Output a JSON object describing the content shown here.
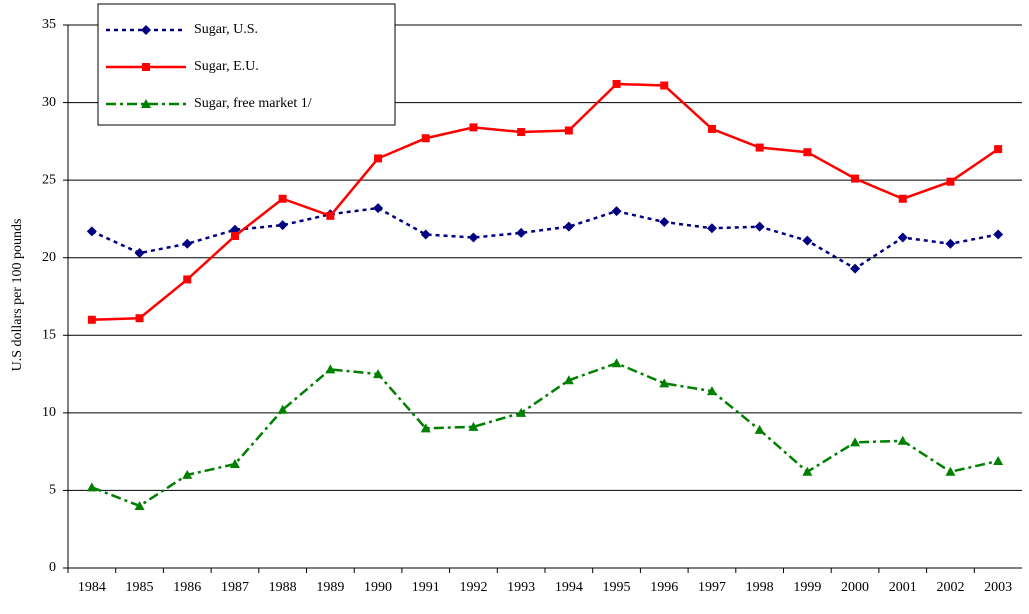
{
  "chart_data": {
    "type": "line",
    "y_label": "U.S dollars per 100 pounds",
    "categories": [
      "1984",
      "1985",
      "1986",
      "1987",
      "1988",
      "1989",
      "1990",
      "1991",
      "1992",
      "1993",
      "1994",
      "1995",
      "1996",
      "1997",
      "1998",
      "1999",
      "2000",
      "2001",
      "2002",
      "2003"
    ],
    "series": [
      {
        "name": "Sugar, U.S.",
        "color": "#000080",
        "marker": "diamond",
        "dash": "4 4",
        "values": [
          21.7,
          20.3,
          20.9,
          21.8,
          22.1,
          22.8,
          23.2,
          21.5,
          21.3,
          21.6,
          22.0,
          23.0,
          22.3,
          21.9,
          22.0,
          21.1,
          19.3,
          21.3,
          20.9,
          21.5
        ]
      },
      {
        "name": "Sugar, E.U.",
        "color": "#ff0000",
        "marker": "square",
        "dash": "none",
        "values": [
          16.0,
          16.1,
          18.6,
          21.4,
          23.8,
          22.7,
          26.4,
          27.7,
          28.4,
          28.1,
          28.2,
          31.2,
          31.1,
          28.3,
          27.1,
          26.8,
          25.1,
          23.8,
          24.9,
          27.0
        ]
      },
      {
        "name": "Sugar, free market  1/",
        "color": "#008000",
        "marker": "triangle",
        "dash": "10 4 3 4",
        "values": [
          5.2,
          4.0,
          6.0,
          6.7,
          10.2,
          12.8,
          12.5,
          9.0,
          9.1,
          10.0,
          12.1,
          13.2,
          11.9,
          11.4,
          8.9,
          6.2,
          8.1,
          8.2,
          6.2,
          6.9
        ]
      }
    ],
    "ylim": [
      0,
      35
    ],
    "yticks": [
      0,
      5,
      10,
      15,
      20,
      25,
      30,
      35
    ],
    "grid": true,
    "legend": "top-left"
  }
}
